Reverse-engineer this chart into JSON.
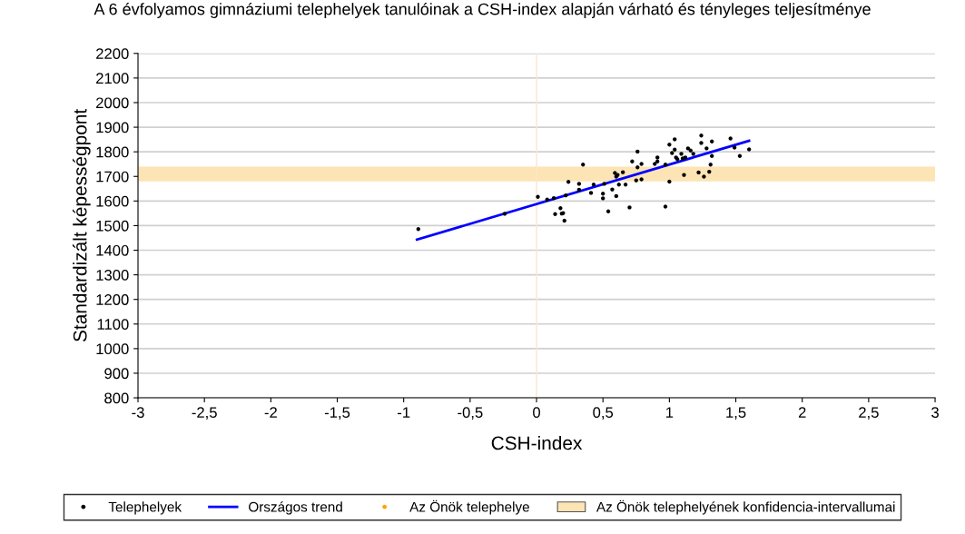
{
  "chart_data": {
    "type": "scatter",
    "title": "A 6 évfolyamos gimnáziumi telephelyek tanulóinak a CSH-index alapján várható és tényleges teljesítménye",
    "xlabel": "CSH-index",
    "ylabel": "Standardizált képességpont",
    "xlim": [
      -3,
      3
    ],
    "ylim": [
      800,
      2200
    ],
    "xticks": [
      -3,
      {
        "value": -2.5,
        "label": "-2,5"
      },
      -2,
      {
        "value": -1.5,
        "label": "-1,5"
      },
      -1,
      {
        "value": -0.5,
        "label": "-0,5"
      },
      0,
      {
        "value": 0.5,
        "label": "0,5"
      },
      1,
      {
        "value": 1.5,
        "label": "1,5"
      },
      2,
      {
        "value": 2.5,
        "label": "2,5"
      },
      3
    ],
    "yticks": [
      800,
      900,
      1000,
      1100,
      1200,
      1300,
      1400,
      1500,
      1600,
      1700,
      1800,
      1900,
      2000,
      2100,
      2200
    ],
    "grid": "y",
    "legend": "bottom",
    "marker": "circle",
    "series": [
      {
        "name": "Telephelyek",
        "color": "#000000",
        "x": [
          -0.89,
          -0.24,
          0.01,
          0.08,
          0.13,
          0.14,
          0.18,
          0.19,
          0.22,
          0.2,
          0.21,
          0.24,
          0.32,
          0.32,
          0.35,
          0.41,
          0.43,
          0.5,
          0.5,
          0.51,
          0.54,
          0.57,
          0.59,
          0.6,
          0.6,
          0.61,
          0.62,
          0.65,
          0.67,
          0.7,
          0.72,
          0.75,
          0.76,
          0.76,
          0.79,
          0.79,
          0.89,
          0.91,
          0.91,
          0.97,
          0.97,
          1.0,
          1.0,
          1.04,
          1.04,
          1.02,
          1.05,
          1.06,
          1.09,
          1.1,
          1.12,
          1.14,
          1.16,
          1.18,
          1.11,
          1.22,
          1.24,
          1.24,
          1.26,
          1.28,
          1.3,
          1.31,
          1.32,
          1.32,
          1.46,
          1.49,
          1.53,
          1.6
        ],
        "values": [
          1486,
          1548,
          1617,
          1606,
          1612,
          1547,
          1571,
          1549,
          1623,
          1551,
          1520,
          1678,
          1670,
          1646,
          1748,
          1633,
          1667,
          1630,
          1611,
          1670,
          1558,
          1647,
          1714,
          1699,
          1620,
          1706,
          1667,
          1717,
          1667,
          1574,
          1761,
          1684,
          1801,
          1737,
          1688,
          1751,
          1751,
          1777,
          1761,
          1748,
          1577,
          1679,
          1829,
          1851,
          1809,
          1795,
          1777,
          1770,
          1792,
          1773,
          1777,
          1814,
          1805,
          1792,
          1706,
          1716,
          1866,
          1836,
          1699,
          1814,
          1719,
          1748,
          1842,
          1783,
          1854,
          1817,
          1783,
          1810
        ]
      },
      {
        "name": "Országos trend",
        "type": "line",
        "color": "#0000ff",
        "x": [
          -0.9,
          1.6
        ],
        "values": [
          1443,
          1845
        ],
        "marker": "none",
        "line_style": "solid"
      },
      {
        "name": "Az Önök telephelye",
        "color": "#ffa500"
      }
    ],
    "bands": [
      {
        "axis": "y",
        "from": 1680,
        "to": 1740,
        "label": "Az Önök telephelyének konfidencia-intervallumai",
        "color": "#fde4b4"
      }
    ],
    "ref_lines": [
      {
        "axis": "x",
        "value": 0,
        "color": "#fbe8cc",
        "line_style": "solid"
      }
    ]
  }
}
